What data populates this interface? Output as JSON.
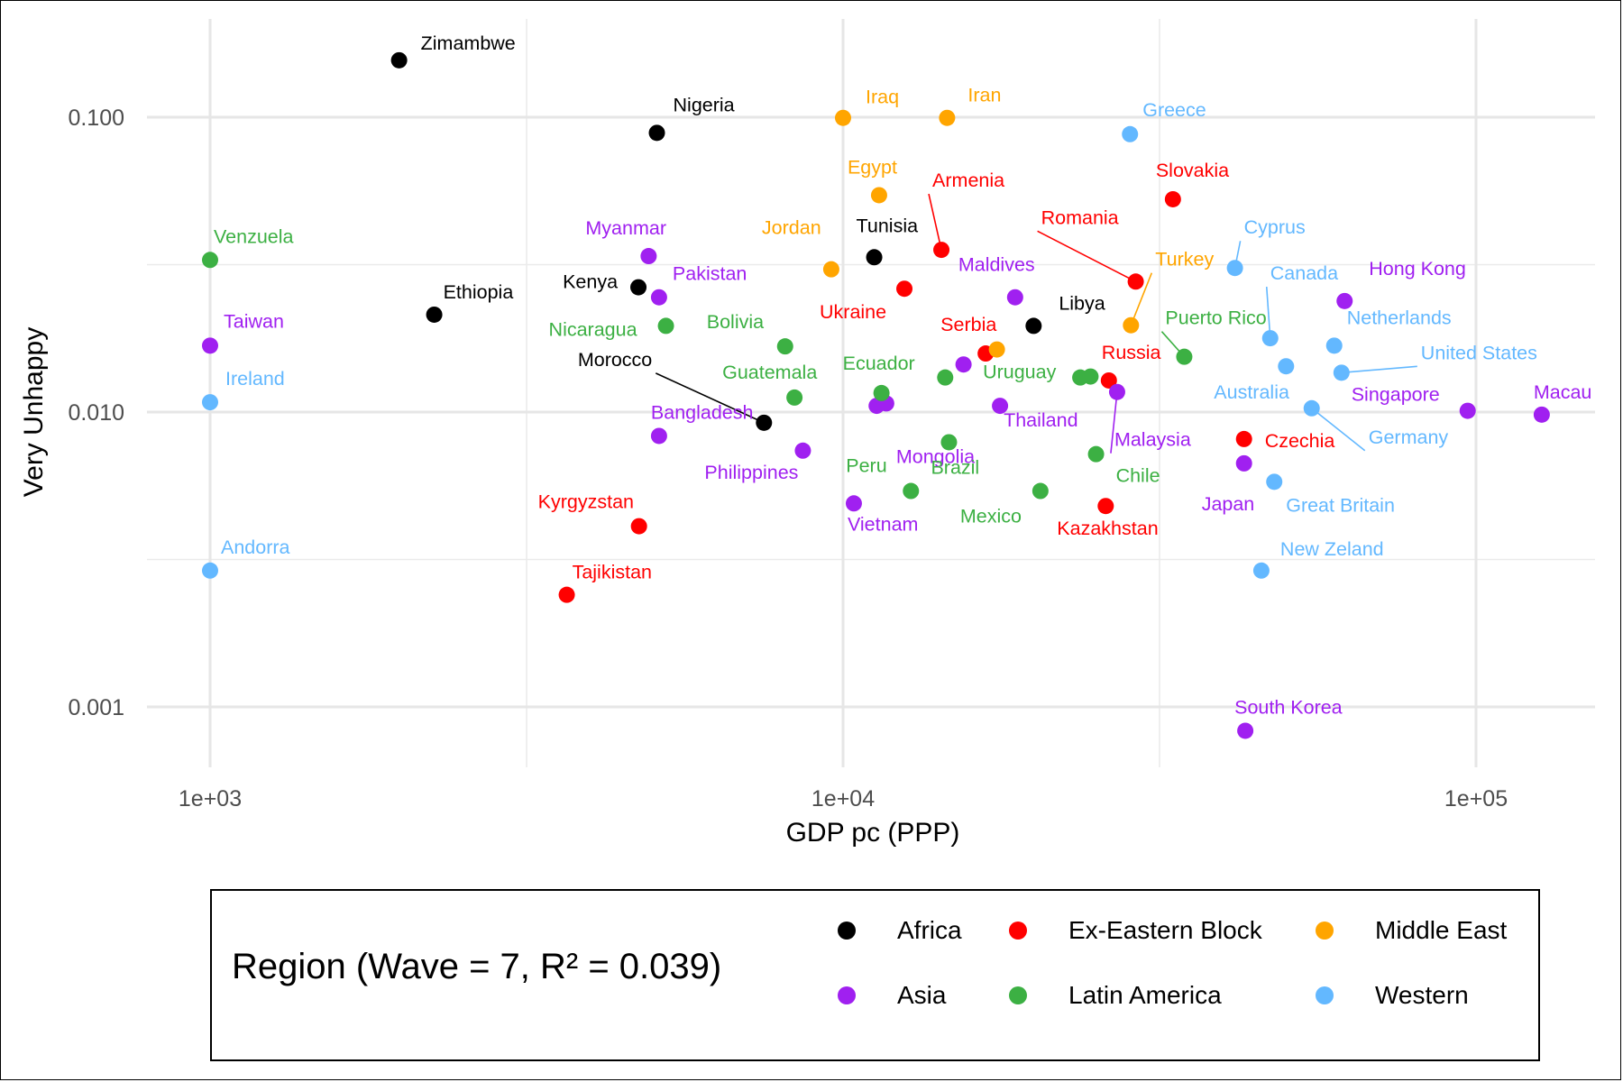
{
  "colors": {
    "Africa": "#000000",
    "Ex-Eastern Block": "#ff0000",
    "Middle East": "#ffa500",
    "Asia": "#a020f0",
    "Latin America": "#3cb043",
    "Western": "#63b8ff"
  },
  "chart_data": {
    "type": "scatter",
    "xlabel": "GDP pc (PPP)",
    "ylabel": "Very Unhappy",
    "xscale": "log10",
    "yscale": "log10",
    "xlim": [
      600,
      230000
    ],
    "ylim": [
      0.0005,
      0.2
    ],
    "x_ticks": [
      {
        "value": 1000,
        "label": "1e+03"
      },
      {
        "value": 10000,
        "label": "1e+04"
      },
      {
        "value": 100000,
        "label": "1e+05"
      }
    ],
    "y_ticks": [
      {
        "value": 0.001,
        "label": "0.001"
      },
      {
        "value": 0.01,
        "label": "0.010"
      },
      {
        "value": 0.1,
        "label": "0.100"
      }
    ],
    "grid": true,
    "legend": {
      "title": "Region (Wave = 7, R² = 0.039)",
      "position": "bottom",
      "items": [
        "Africa",
        "Ex-Eastern Block",
        "Middle East",
        "Asia",
        "Latin America",
        "Western"
      ]
    },
    "points": [
      {
        "label": "Zimambwe",
        "region": "Africa",
        "x": 1989,
        "y": 0.156
      },
      {
        "label": "Nigeria",
        "region": "Africa",
        "x": 5080,
        "y": 0.0885
      },
      {
        "label": "Ethiopia",
        "region": "Africa",
        "x": 2260,
        "y": 0.0214
      },
      {
        "label": "Kenya",
        "region": "Africa",
        "x": 4750,
        "y": 0.0265
      },
      {
        "label": "Tunisia",
        "region": "Africa",
        "x": 11200,
        "y": 0.0335
      },
      {
        "label": "Libya",
        "region": "Africa",
        "x": 20000,
        "y": 0.0196
      },
      {
        "label": "Morocco",
        "region": "Africa",
        "x": 7500,
        "y": 0.0092
      },
      {
        "label": "Armenia",
        "region": "Ex-Eastern Block",
        "x": 14300,
        "y": 0.0355
      },
      {
        "label": "Ukraine",
        "region": "Ex-Eastern Block",
        "x": 12500,
        "y": 0.0262
      },
      {
        "label": "Serbia",
        "region": "Ex-Eastern Block",
        "x": 16800,
        "y": 0.0158
      },
      {
        "label": "Slovakia",
        "region": "Ex-Eastern Block",
        "x": 33200,
        "y": 0.0527
      },
      {
        "label": "Romania",
        "region": "Ex-Eastern Block",
        "x": 29000,
        "y": 0.0277
      },
      {
        "label": "Russia",
        "region": "Ex-Eastern Block",
        "x": 26300,
        "y": 0.0128
      },
      {
        "label": "Czechia",
        "region": "Ex-Eastern Block",
        "x": 43000,
        "y": 0.0081
      },
      {
        "label": "Kazakhstan",
        "region": "Ex-Eastern Block",
        "x": 26000,
        "y": 0.0048
      },
      {
        "label": "Kyrgyzstan",
        "region": "Ex-Eastern Block",
        "x": 4760,
        "y": 0.0041
      },
      {
        "label": "Tajikistan",
        "region": "Ex-Eastern Block",
        "x": 3660,
        "y": 0.0024
      },
      {
        "label": "Iraq",
        "region": "Middle East",
        "x": 10000,
        "y": 0.0995
      },
      {
        "label": "Iran",
        "region": "Middle East",
        "x": 14600,
        "y": 0.0995
      },
      {
        "label": "Egypt",
        "region": "Middle East",
        "x": 11400,
        "y": 0.0544
      },
      {
        "label": "Jordan",
        "region": "Middle East",
        "x": 9580,
        "y": 0.0305
      },
      {
        "label": "Turkey",
        "region": "Middle East",
        "x": 28500,
        "y": 0.0197
      },
      {
        "label": "",
        "region": "Middle East",
        "x": 17500,
        "y": 0.0163
      },
      {
        "label": "Myanmar",
        "region": "Asia",
        "x": 4930,
        "y": 0.0338
      },
      {
        "label": "Pakistan",
        "region": "Asia",
        "x": 5120,
        "y": 0.0245
      },
      {
        "label": "Taiwan",
        "region": "Asia",
        "x": 1000,
        "y": 0.0168
      },
      {
        "label": "Maldives",
        "region": "Asia",
        "x": 18700,
        "y": 0.0245
      },
      {
        "label": "Hong Kong",
        "region": "Asia",
        "x": 62000,
        "y": 0.0238
      },
      {
        "label": "",
        "region": "Asia",
        "x": 15500,
        "y": 0.0145
      },
      {
        "label": "Mongolia",
        "region": "Asia",
        "x": 11700,
        "y": 0.0107
      },
      {
        "label": "",
        "region": "Asia",
        "x": 11300,
        "y": 0.0105
      },
      {
        "label": "Thailand",
        "region": "Asia",
        "x": 17700,
        "y": 0.0105
      },
      {
        "label": "Malaysia",
        "region": "Asia",
        "x": 27100,
        "y": 0.0117
      },
      {
        "label": "Bangladesh",
        "region": "Asia",
        "x": 5120,
        "y": 0.0083
      },
      {
        "label": "Philippines",
        "region": "Asia",
        "x": 8640,
        "y": 0.0074
      },
      {
        "label": "Vietnam",
        "region": "Asia",
        "x": 10400,
        "y": 0.0049
      },
      {
        "label": "Singapore",
        "region": "Asia",
        "x": 97000,
        "y": 0.0101
      },
      {
        "label": "Macau",
        "region": "Asia",
        "x": 127000,
        "y": 0.0098
      },
      {
        "label": "Japan",
        "region": "Asia",
        "x": 43000,
        "y": 0.0067
      },
      {
        "label": "South Korea",
        "region": "Asia",
        "x": 43200,
        "y": 0.00083
      },
      {
        "label": "Venzuela",
        "region": "Latin America",
        "x": 1000,
        "y": 0.0328
      },
      {
        "label": "Nicaragua",
        "region": "Latin America",
        "x": 5250,
        "y": 0.0196
      },
      {
        "label": "Bolivia",
        "region": "Latin America",
        "x": 8100,
        "y": 0.0167
      },
      {
        "label": "Guatemala",
        "region": "Latin America",
        "x": 8380,
        "y": 0.0112
      },
      {
        "label": "Ecuador",
        "region": "Latin America",
        "x": 11500,
        "y": 0.0116
      },
      {
        "label": "",
        "region": "Latin America",
        "x": 14500,
        "y": 0.0131
      },
      {
        "label": "Uruguay",
        "region": "Latin America",
        "x": 23700,
        "y": 0.0131
      },
      {
        "label": "",
        "region": "Latin America",
        "x": 24600,
        "y": 0.0132
      },
      {
        "label": "Puerto Rico",
        "region": "Latin America",
        "x": 34600,
        "y": 0.0154
      },
      {
        "label": "Brazil",
        "region": "Latin America",
        "x": 14700,
        "y": 0.0079
      },
      {
        "label": "Peru",
        "region": "Latin America",
        "x": 12800,
        "y": 0.0054
      },
      {
        "label": "Mexico",
        "region": "Latin America",
        "x": 20500,
        "y": 0.0054
      },
      {
        "label": "Chile",
        "region": "Latin America",
        "x": 25100,
        "y": 0.0072
      },
      {
        "label": "Greece",
        "region": "Western",
        "x": 28400,
        "y": 0.0876
      },
      {
        "label": "Cyprus",
        "region": "Western",
        "x": 41600,
        "y": 0.0308
      },
      {
        "label": "Canada",
        "region": "Western",
        "x": 47300,
        "y": 0.0178
      },
      {
        "label": "Netherlands",
        "region": "Western",
        "x": 59700,
        "y": 0.0168
      },
      {
        "label": "United States",
        "region": "Western",
        "x": 61300,
        "y": 0.0136
      },
      {
        "label": "Australia",
        "region": "Western",
        "x": 50100,
        "y": 0.0143
      },
      {
        "label": "Germany",
        "region": "Western",
        "x": 55000,
        "y": 0.0103
      },
      {
        "label": "Great Britain",
        "region": "Western",
        "x": 48000,
        "y": 0.0058
      },
      {
        "label": "New Zeland",
        "region": "Western",
        "x": 45800,
        "y": 0.0029
      },
      {
        "label": "Ireland",
        "region": "Western",
        "x": 1000,
        "y": 0.0108
      },
      {
        "label": "Andorra",
        "region": "Western",
        "x": 1000,
        "y": 0.0029
      }
    ]
  }
}
